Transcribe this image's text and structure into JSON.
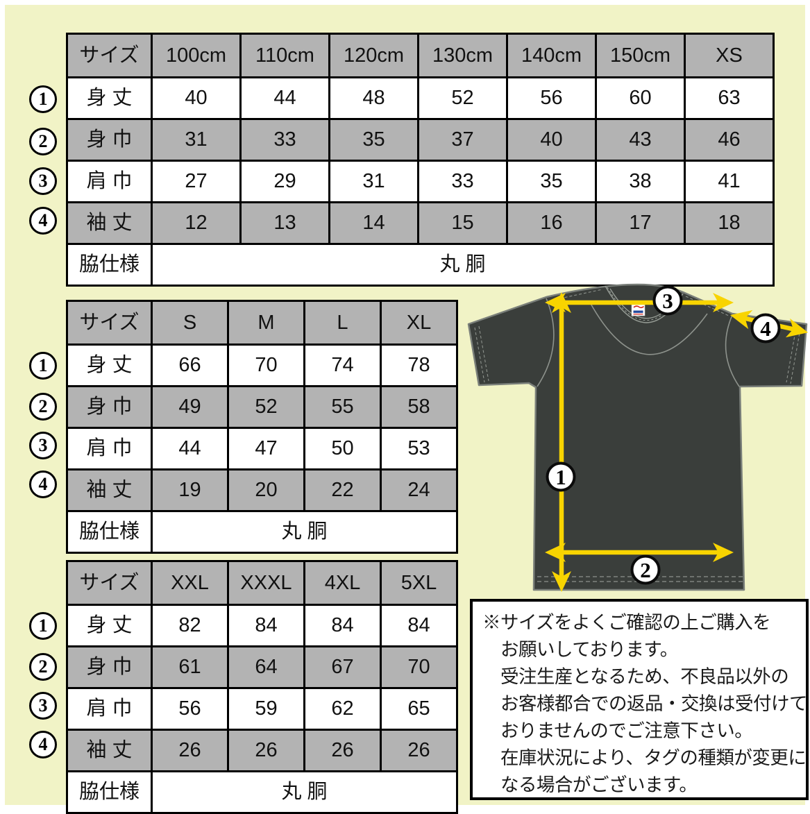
{
  "colors": {
    "background": "#f1f3c6",
    "table_gray": "#b3b3b3",
    "table_white": "#ffffff",
    "border": "#000000",
    "shirt_fill": "#3a3e3b",
    "shirt_outline": "#7a7f7a",
    "arrow_yellow": "#f8d400"
  },
  "tables": [
    {
      "name": "kids-xs",
      "size_header": "サイズ",
      "columns": [
        "100cm",
        "110cm",
        "120cm",
        "130cm",
        "140cm",
        "150cm",
        "XS"
      ],
      "rows": [
        {
          "marker": "1",
          "label": "身 丈",
          "values": [
            "40",
            "44",
            "48",
            "52",
            "56",
            "60",
            "63"
          ]
        },
        {
          "marker": "2",
          "label": "身 巾",
          "values": [
            "31",
            "33",
            "35",
            "37",
            "40",
            "43",
            "46"
          ]
        },
        {
          "marker": "3",
          "label": "肩 巾",
          "values": [
            "27",
            "29",
            "31",
            "33",
            "35",
            "38",
            "41"
          ]
        },
        {
          "marker": "4",
          "label": "袖 丈",
          "values": [
            "12",
            "13",
            "14",
            "15",
            "16",
            "17",
            "18"
          ]
        }
      ],
      "footer": {
        "label": "脇仕様",
        "value": "丸 胴"
      }
    },
    {
      "name": "s-xl",
      "size_header": "サイズ",
      "columns": [
        "S",
        "M",
        "L",
        "XL"
      ],
      "rows": [
        {
          "marker": "1",
          "label": "身 丈",
          "values": [
            "66",
            "70",
            "74",
            "78"
          ]
        },
        {
          "marker": "2",
          "label": "身 巾",
          "values": [
            "49",
            "52",
            "55",
            "58"
          ]
        },
        {
          "marker": "3",
          "label": "肩 巾",
          "values": [
            "44",
            "47",
            "50",
            "53"
          ]
        },
        {
          "marker": "4",
          "label": "袖 丈",
          "values": [
            "19",
            "20",
            "22",
            "24"
          ]
        }
      ],
      "footer": {
        "label": "脇仕様",
        "value": "丸 胴"
      }
    },
    {
      "name": "xxl-5xl",
      "size_header": "サイズ",
      "columns": [
        "XXL",
        "XXXL",
        "4XL",
        "5XL"
      ],
      "rows": [
        {
          "marker": "1",
          "label": "身 丈",
          "values": [
            "82",
            "84",
            "84",
            "84"
          ]
        },
        {
          "marker": "2",
          "label": "身 巾",
          "values": [
            "61",
            "64",
            "67",
            "70"
          ]
        },
        {
          "marker": "3",
          "label": "肩 巾",
          "values": [
            "56",
            "59",
            "62",
            "65"
          ]
        },
        {
          "marker": "4",
          "label": "袖 丈",
          "values": [
            "26",
            "26",
            "26",
            "26"
          ]
        }
      ],
      "footer": {
        "label": "脇仕様",
        "value": "丸 胴"
      }
    }
  ],
  "diagram": {
    "circle1": "1",
    "circle2": "2",
    "circle3": "3",
    "circle4": "4"
  },
  "notes": {
    "lines": [
      "※サイズをよくご確認の上ご購入を",
      "お願いしております。",
      "受注生産となるため、不良品以外の",
      "お客様都合での返品・交換は受付けて",
      "おりませんのでご注意下さい。",
      "在庫状況により、タグの種類が変更に",
      "なる場合がございます。"
    ]
  }
}
